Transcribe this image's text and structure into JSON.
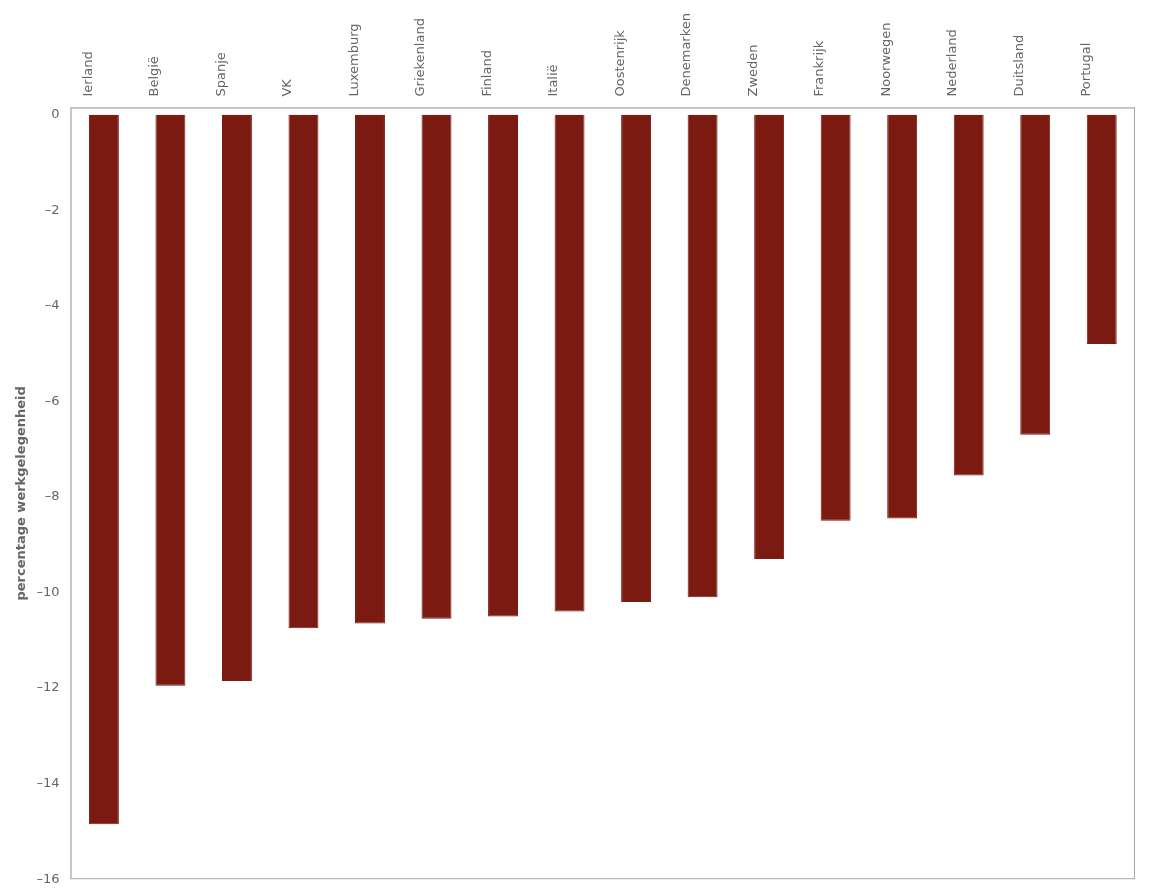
{
  "chart_data": {
    "type": "bar",
    "categories": [
      "Ierland",
      "België",
      "Spanje",
      "VK",
      "Luxemburg",
      "Griekenland",
      "Finland",
      "Italië",
      "Oostenrijk",
      "Denemarken",
      "Zweden",
      "Frankrijk",
      "Noorwegen",
      "Nederland",
      "Duitsland",
      "Portugal"
    ],
    "values": [
      -14.85,
      -11.95,
      -11.85,
      -10.75,
      -10.65,
      -10.55,
      -10.5,
      -10.4,
      -10.2,
      -10.1,
      -9.3,
      -8.5,
      -8.45,
      -7.55,
      -6.7,
      -4.8
    ],
    "color": "#7B1A10",
    "ylabel": "percentage werkgelegenheid",
    "ylim": [
      -16,
      0.15
    ],
    "yticks": [
      0,
      {
        "value": -2,
        "label": "–2"
      },
      {
        "value": -4,
        "label": "–4"
      },
      {
        "value": -6,
        "label": "–6"
      },
      {
        "value": -8,
        "label": "–8"
      },
      {
        "value": -10,
        "label": "–10"
      },
      {
        "value": -12,
        "label": "–12"
      },
      {
        "value": -14,
        "label": "–14"
      },
      {
        "value": -16,
        "label": "–16"
      }
    ],
    "grid": false
  }
}
